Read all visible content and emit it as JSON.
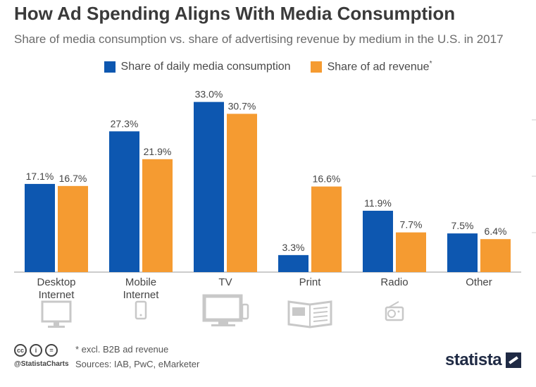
{
  "header": {
    "title": "How Ad Spending Aligns With Media Consumption",
    "subtitle": "Share of media consumption vs. share of advertising revenue by medium in the U.S. in 2017"
  },
  "legend": {
    "items": [
      {
        "label": "Share of daily media consumption",
        "color": "#0d57b0"
      },
      {
        "label": "Share of ad revenue",
        "sup": "*",
        "color": "#f59b31"
      }
    ]
  },
  "chart_data": {
    "type": "bar",
    "categories": [
      "Desktop\nInternet",
      "Mobile\nInternet",
      "TV",
      "Print",
      "Radio",
      "Other"
    ],
    "series": [
      {
        "name": "Share of daily media consumption",
        "values": [
          17.1,
          27.3,
          33.0,
          3.3,
          11.9,
          7.5
        ],
        "color": "#0d57b0"
      },
      {
        "name": "Share of ad revenue*",
        "values": [
          16.7,
          21.9,
          30.7,
          16.6,
          7.7,
          6.4
        ],
        "color": "#f59b31"
      }
    ],
    "value_labels": [
      [
        "17.1%",
        "27.3%",
        "33.0%",
        "3.3%",
        "11.9%",
        "7.5%"
      ],
      [
        "16.7%",
        "21.9%",
        "30.7%",
        "16.6%",
        "7.7%",
        "6.4%"
      ]
    ],
    "ylim": [
      0,
      35
    ],
    "category_icons": [
      "desktop-monitor-icon",
      "smartphone-icon",
      "tv-icon",
      "newspaper-icon",
      "radio-icon",
      ""
    ]
  },
  "footer": {
    "note": "* excl. B2B ad revenue",
    "sources": "Sources: IAB, PwC, eMarketer",
    "handle": "@StatistaCharts",
    "cc_icons": [
      "cc",
      "i",
      "="
    ],
    "brand": "statista"
  }
}
